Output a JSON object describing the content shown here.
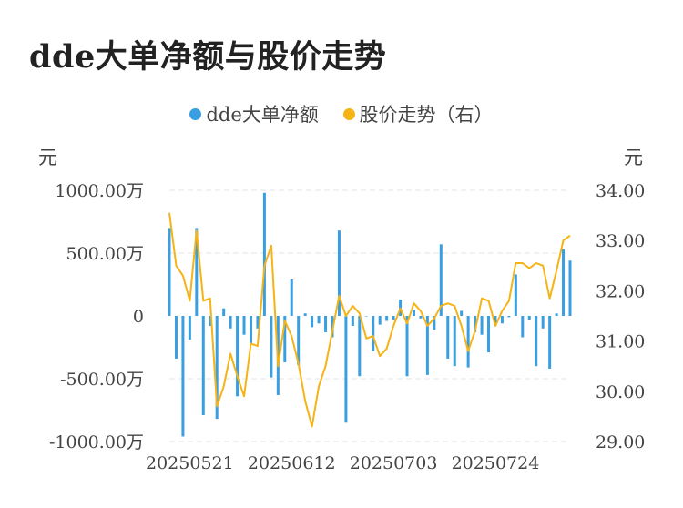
{
  "title": "dde大单净额与股价走势",
  "chart_data": {
    "type": "bar",
    "title": "dde大单净额与股价走势",
    "legend": {
      "placement": "top-center",
      "items": [
        {
          "label": "dde大单净额",
          "color": "#3a9fe0"
        },
        {
          "label": "股价走势（右）",
          "color": "#f5b316"
        }
      ]
    },
    "left_unit": "元",
    "right_unit": "元",
    "x_tick_labels": [
      "20250521",
      "20250612",
      "20250703",
      "20250724"
    ],
    "x_tick_index": [
      3,
      18,
      33,
      48
    ],
    "y_left": {
      "min": -1000,
      "max": 1000,
      "ticks": [
        1000,
        500,
        0,
        -500,
        -1000
      ],
      "tick_labels": [
        "1000.00万",
        "500.00万",
        "0",
        "-500.00万",
        "-1000.00万"
      ]
    },
    "y_right": {
      "min": 29,
      "max": 34,
      "ticks": [
        34,
        33,
        32,
        31,
        30,
        29
      ],
      "tick_labels": [
        "34.00",
        "33.00",
        "32.00",
        "31.00",
        "30.00",
        "29.00"
      ]
    },
    "grid": true,
    "series": [
      {
        "name": "dde大单净额",
        "type": "bar",
        "axis": "left",
        "color": "#3a9fe0",
        "unit": "万元",
        "values": [
          700,
          -340,
          -960,
          -190,
          700,
          -790,
          -80,
          -820,
          60,
          -100,
          -640,
          -150,
          -220,
          -100,
          980,
          -490,
          -630,
          -370,
          290,
          -390,
          20,
          -90,
          -60,
          -130,
          -170,
          680,
          -850,
          -80,
          -480,
          0,
          -280,
          -70,
          -40,
          -30,
          130,
          -480,
          50,
          -20,
          -470,
          -110,
          570,
          -340,
          -400,
          40,
          -410,
          -130,
          -150,
          -290,
          -80,
          -60,
          -10,
          330,
          -170,
          -30,
          -400,
          -100,
          -420,
          20,
          530,
          440
        ]
      },
      {
        "name": "股价走势（右）",
        "type": "line",
        "axis": "right",
        "color": "#f5b316",
        "values": [
          33.55,
          32.5,
          32.3,
          31.8,
          33.2,
          31.8,
          31.85,
          29.7,
          30.1,
          30.75,
          30.3,
          29.9,
          30.95,
          30.9,
          32.5,
          32.9,
          30.5,
          31.4,
          31.1,
          30.55,
          29.8,
          29.3,
          30.1,
          30.5,
          31.2,
          31.9,
          31.5,
          31.7,
          31.55,
          31.05,
          31.1,
          30.7,
          30.85,
          31.3,
          31.65,
          31.35,
          31.75,
          31.6,
          31.3,
          31.45,
          31.7,
          31.75,
          31.7,
          31.3,
          30.8,
          31.2,
          31.85,
          31.8,
          31.3,
          31.6,
          31.8,
          32.55,
          32.55,
          32.45,
          32.55,
          32.5,
          31.85,
          32.4,
          33.0,
          33.1
        ]
      }
    ]
  }
}
